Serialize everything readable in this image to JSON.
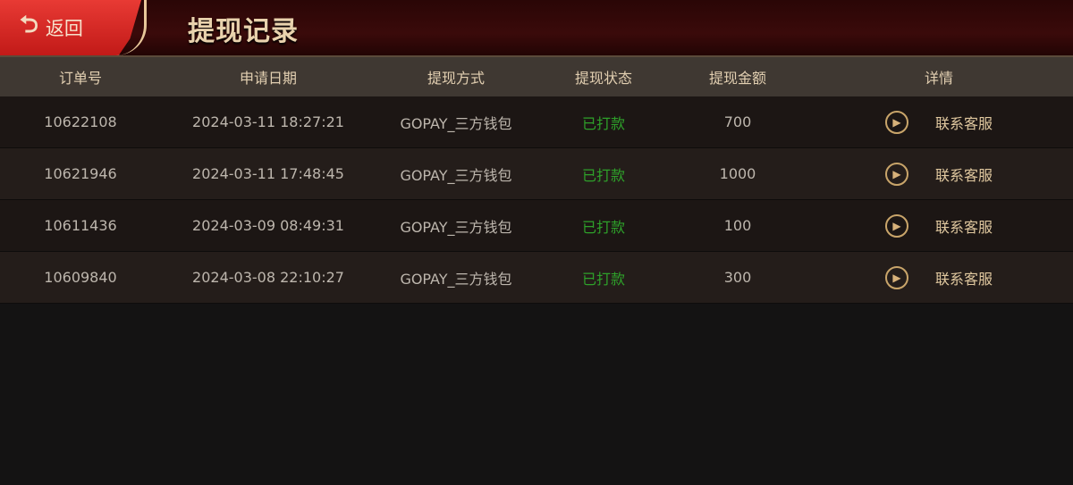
{
  "header": {
    "back_label": "返回",
    "back_icon": "return-arrow-icon",
    "title": "提现记录"
  },
  "table": {
    "columns": [
      "订单号",
      "申请日期",
      "提现方式",
      "提现状态",
      "提现金额",
      "详情"
    ],
    "rows": [
      {
        "order": "10622108",
        "date": "2024-03-11 18:27:21",
        "method": "GOPAY_三方钱包",
        "status": "已打款",
        "amount": "700",
        "action": "联系客服"
      },
      {
        "order": "10621946",
        "date": "2024-03-11 17:48:45",
        "method": "GOPAY_三方钱包",
        "status": "已打款",
        "amount": "1000",
        "action": "联系客服"
      },
      {
        "order": "10611436",
        "date": "2024-03-09 08:49:31",
        "method": "GOPAY_三方钱包",
        "status": "已打款",
        "amount": "100",
        "action": "联系客服"
      },
      {
        "order": "10609840",
        "date": "2024-03-08 22:10:27",
        "method": "GOPAY_三方钱包",
        "status": "已打款",
        "amount": "300",
        "action": "联系客服"
      }
    ]
  },
  "colors": {
    "status_paid": "#2ea12a",
    "accent_red": "#d42a26",
    "gold": "#e0c89f"
  }
}
